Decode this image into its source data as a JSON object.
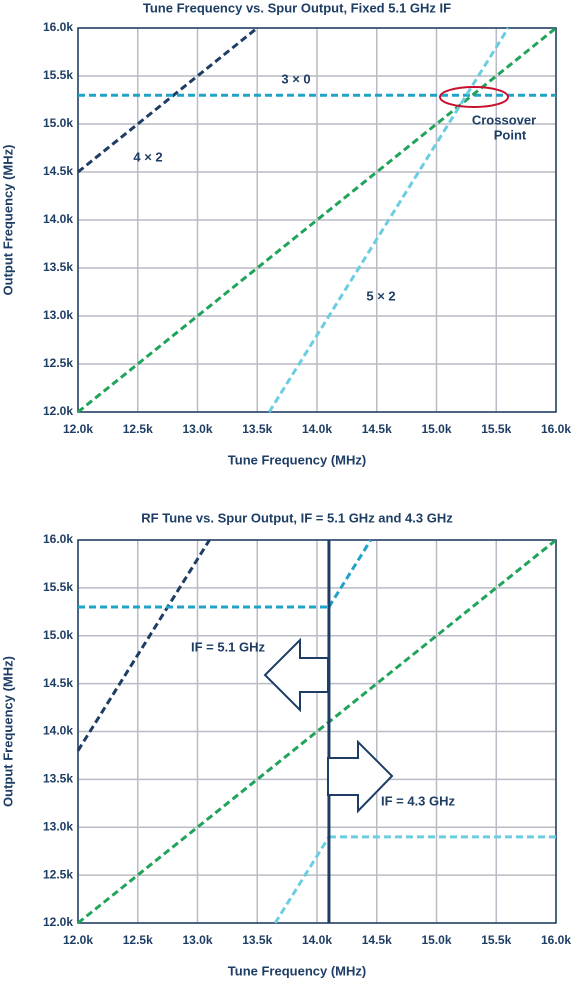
{
  "chart_data": [
    {
      "type": "line",
      "title": "Tune Frequency vs. Spur Output, Fixed 5.1 GHz IF",
      "x_label": "Tune Frequency (MHz)",
      "y_label": "Output Frequency (MHz)",
      "xlim": [
        12000,
        16000
      ],
      "ylim": [
        12000,
        16000
      ],
      "xticks": [
        {
          "value": 12000,
          "label": "12.0k"
        },
        {
          "value": 12500,
          "label": "12.5k"
        },
        {
          "value": 13000,
          "label": "13.0k"
        },
        {
          "value": 13500,
          "label": "13.5k"
        },
        {
          "value": 14000,
          "label": "14.0k"
        },
        {
          "value": 14500,
          "label": "14.5k"
        },
        {
          "value": 15000,
          "label": "15.0k"
        },
        {
          "value": 15500,
          "label": "15.5k"
        },
        {
          "value": 16000,
          "label": "16.0k"
        }
      ],
      "yticks": [
        {
          "value": 12000,
          "label": "12.0k"
        },
        {
          "value": 12500,
          "label": "12.5k"
        },
        {
          "value": 13000,
          "label": "13.0k"
        },
        {
          "value": 13500,
          "label": "13.5k"
        },
        {
          "value": 14000,
          "label": "14.0k"
        },
        {
          "value": 14500,
          "label": "14.5k"
        },
        {
          "value": 15000,
          "label": "15.0k"
        },
        {
          "value": 15500,
          "label": "15.5k"
        },
        {
          "value": 16000,
          "label": "16.0k"
        }
      ],
      "grid": true,
      "series": [
        {
          "name": "4 × 2",
          "color": "#1e3d64",
          "x": [
            12000,
            13500
          ],
          "values": [
            14500,
            16000
          ]
        },
        {
          "name": "3 × 0",
          "color": "#21a3c9",
          "x": [
            12000,
            16000
          ],
          "values": [
            15300,
            15300
          ]
        },
        {
          "color": "#20a35a",
          "x": [
            12000,
            16000
          ],
          "values": [
            12000,
            16000
          ]
        },
        {
          "name": "5 × 2",
          "color": "#6ccde1",
          "x": [
            13600,
            15600
          ],
          "values": [
            12000,
            16000
          ]
        }
      ],
      "annotations": [
        "Crossover",
        "Point"
      ]
    },
    {
      "type": "line",
      "title": "RF Tune vs. Spur Output, IF = 5.1 GHz and 4.3 GHz",
      "x_label": "Tune Frequency (MHz)",
      "y_label": "Output Frequency (MHz)",
      "xlim": [
        12000,
        16000
      ],
      "ylim": [
        12000,
        16000
      ],
      "xticks": [
        {
          "value": 12000,
          "label": "12.0k"
        },
        {
          "value": 12500,
          "label": "12.5k"
        },
        {
          "value": 13000,
          "label": "13.0k"
        },
        {
          "value": 13500,
          "label": "13.5k"
        },
        {
          "value": 14000,
          "label": "14.0k"
        },
        {
          "value": 14500,
          "label": "14.5k"
        },
        {
          "value": 15000,
          "label": "15.0k"
        },
        {
          "value": 15500,
          "label": "15.5k"
        },
        {
          "value": 16000,
          "label": "16.0k"
        }
      ],
      "yticks": [
        {
          "value": 12000,
          "label": "12.0k"
        },
        {
          "value": 12500,
          "label": "12.5k"
        },
        {
          "value": 13000,
          "label": "13.0k"
        },
        {
          "value": 13500,
          "label": "13.5k"
        },
        {
          "value": 14000,
          "label": "14.0k"
        },
        {
          "value": 14500,
          "label": "14.5k"
        },
        {
          "value": 15000,
          "label": "15.0k"
        },
        {
          "value": 15500,
          "label": "15.5k"
        },
        {
          "value": 16000,
          "label": "16.0k"
        }
      ],
      "grid": true,
      "vline": 14100,
      "series": [
        {
          "color": "#1e3d64",
          "x": [
            12000,
            13100
          ],
          "values": [
            13800,
            16000
          ]
        },
        {
          "color": "#21a3c9",
          "x": [
            12000,
            14100
          ],
          "values": [
            15300,
            15300
          ]
        },
        {
          "color": "#21a3c9",
          "x": [
            14100,
            14450
          ],
          "values": [
            15300,
            16000
          ]
        },
        {
          "color": "#20a35a",
          "x": [
            12000,
            16000
          ],
          "values": [
            12000,
            16000
          ]
        },
        {
          "color": "#6ccde1",
          "x": [
            13650,
            14100
          ],
          "values": [
            12000,
            12900
          ]
        },
        {
          "color": "#6ccde1",
          "x": [
            14100,
            16000
          ],
          "values": [
            12900,
            12900
          ]
        }
      ],
      "annotations": [
        "IF = 5.1 GHz",
        "IF = 4.3 GHz"
      ]
    }
  ]
}
